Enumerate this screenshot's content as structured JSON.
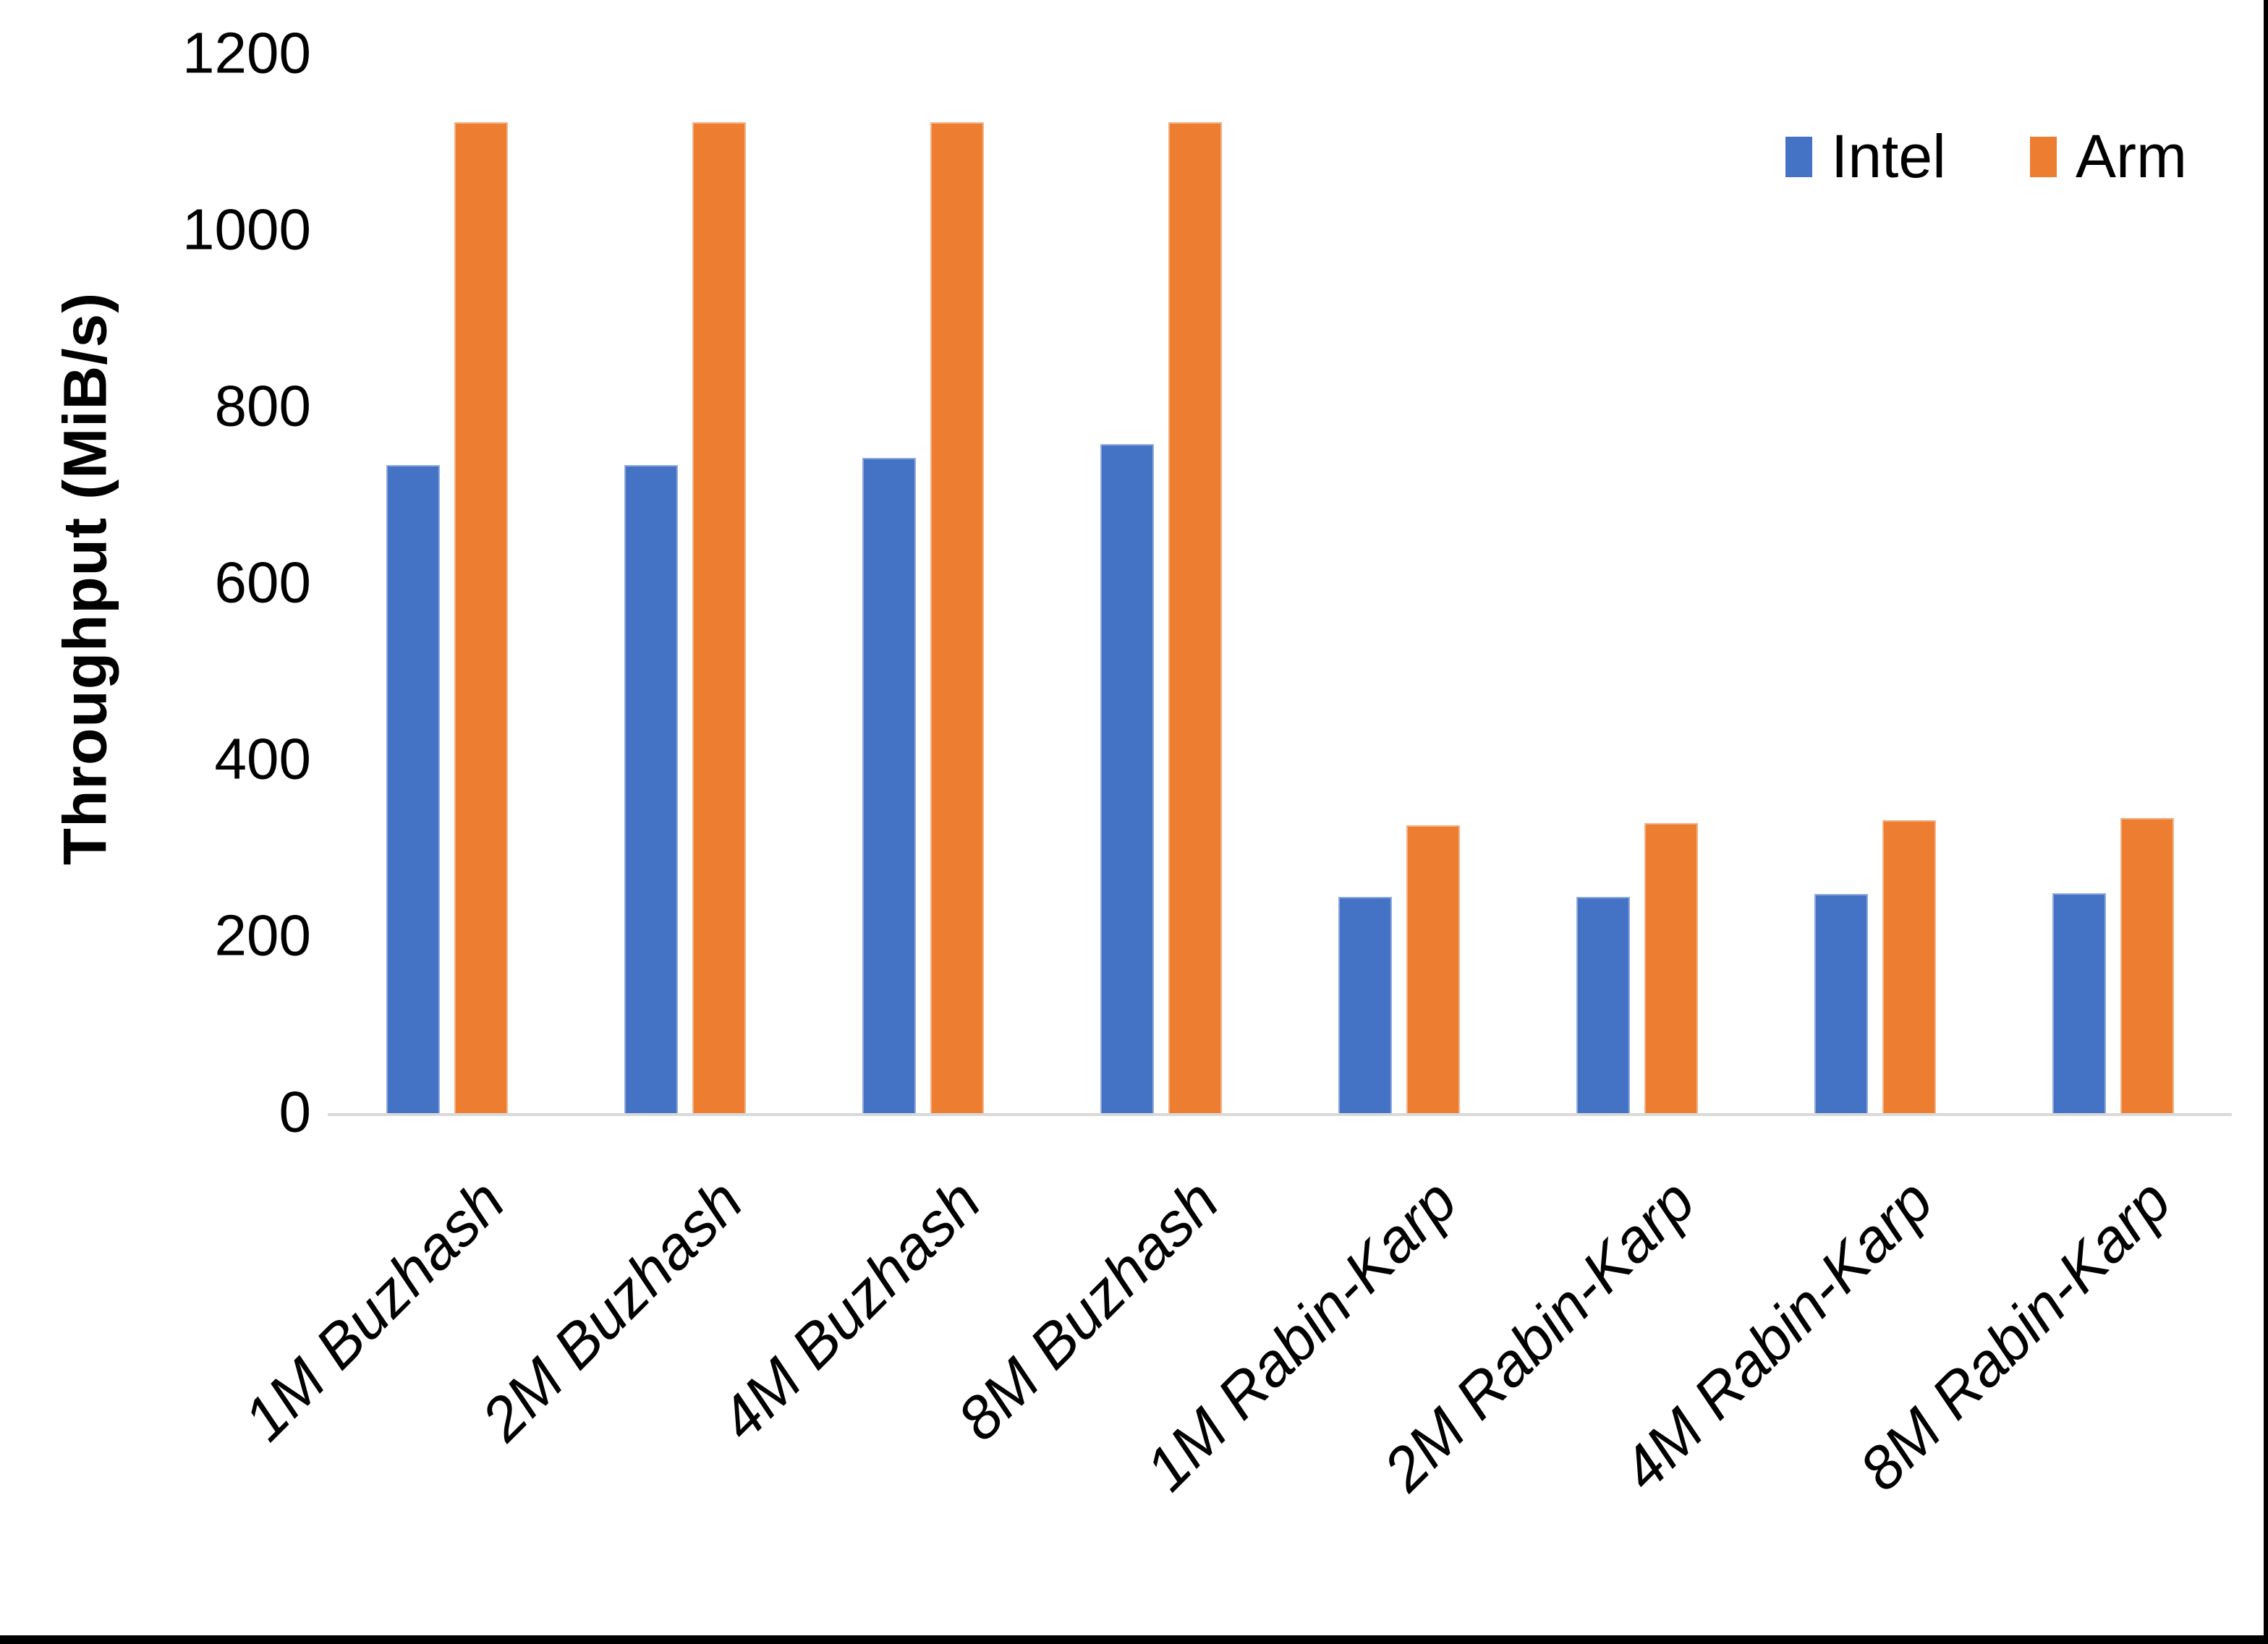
{
  "chart_data": {
    "type": "bar",
    "title": "",
    "xlabel": "",
    "ylabel": "Throughput (MiB/s)",
    "ylim": [
      0,
      1200
    ],
    "yticks": [
      0,
      200,
      400,
      600,
      800,
      1000,
      1200
    ],
    "grid": false,
    "legend_position": "top-right",
    "categories": [
      "1M Buzhash",
      "2M Buzhash",
      "4M Buzhash",
      "8M Buzhash",
      "1M Rabin-Karp",
      "2M Rabin-Karp",
      "4M Rabin-Karp",
      "8M Rabin-Karp"
    ],
    "series": [
      {
        "name": "Intel",
        "color": "#4472C4",
        "values": [
          736,
          736,
          744,
          760,
          247,
          247,
          250,
          251
        ]
      },
      {
        "name": "Arm",
        "color": "#ED7D31",
        "values": [
          1125,
          1125,
          1125,
          1125,
          328,
          330,
          334,
          336
        ]
      }
    ],
    "colors": {
      "axis_line": "#D9D9D9",
      "text": "#000000",
      "background": "#FFFFFF",
      "frame_border": "#000000"
    }
  }
}
